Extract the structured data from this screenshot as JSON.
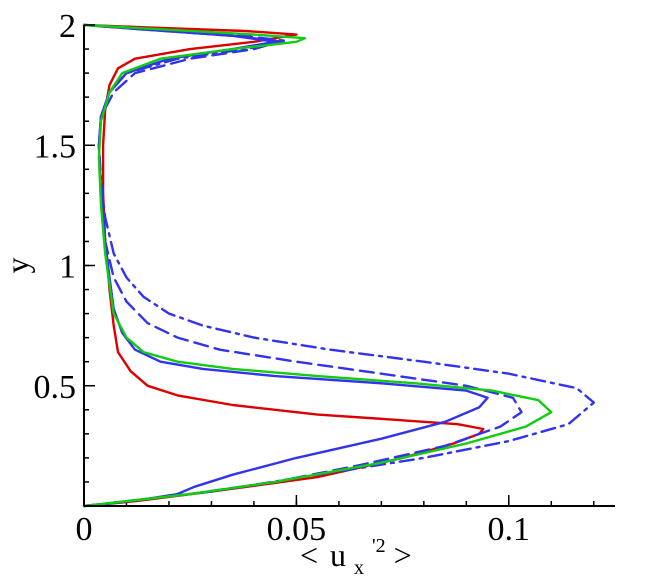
{
  "chart_data": {
    "type": "line",
    "title": "",
    "xlabel": "< u_x'^2 >",
    "xlabel_parts": {
      "open": "<",
      "base": "u",
      "sub": "x",
      "sup": "'2",
      "close": ">"
    },
    "ylabel": "y",
    "xlim": [
      0,
      0.125
    ],
    "ylim": [
      0,
      2
    ],
    "xticks": [
      0,
      0.05,
      0.1
    ],
    "xtick_labels": [
      "0",
      "0.05",
      "0.1"
    ],
    "yticks": [
      0.5,
      1,
      1.5,
      2
    ],
    "ytick_labels": [
      "0.5",
      "1",
      "1.5",
      "2"
    ],
    "x_minor_step": 0.01,
    "y_minor_step": 0.1,
    "legend": null,
    "series": [
      {
        "color": "#dd0000",
        "dash": "solid",
        "points": [
          [
            0.0,
            0.0
          ],
          [
            0.012,
            0.02
          ],
          [
            0.03,
            0.06
          ],
          [
            0.055,
            0.12
          ],
          [
            0.075,
            0.2
          ],
          [
            0.087,
            0.26
          ],
          [
            0.093,
            0.3
          ],
          [
            0.094,
            0.32
          ],
          [
            0.088,
            0.34
          ],
          [
            0.072,
            0.36
          ],
          [
            0.055,
            0.38
          ],
          [
            0.035,
            0.42
          ],
          [
            0.022,
            0.46
          ],
          [
            0.015,
            0.5
          ],
          [
            0.011,
            0.56
          ],
          [
            0.008,
            0.64
          ],
          [
            0.007,
            0.75
          ],
          [
            0.006,
            0.9
          ],
          [
            0.005,
            1.1
          ],
          [
            0.0045,
            1.3
          ],
          [
            0.0045,
            1.5
          ],
          [
            0.005,
            1.65
          ],
          [
            0.006,
            1.75
          ],
          [
            0.008,
            1.82
          ],
          [
            0.012,
            1.86
          ],
          [
            0.025,
            1.9
          ],
          [
            0.04,
            1.93
          ],
          [
            0.05,
            1.96
          ],
          [
            0.038,
            1.975
          ],
          [
            0.015,
            1.99
          ],
          [
            0.0,
            2.0
          ]
        ]
      },
      {
        "color": "#3333ee",
        "dash": "solid",
        "points": [
          [
            0.0,
            0.0
          ],
          [
            0.006,
            0.01
          ],
          [
            0.015,
            0.03
          ],
          [
            0.022,
            0.05
          ],
          [
            0.026,
            0.08
          ],
          [
            0.035,
            0.13
          ],
          [
            0.05,
            0.2
          ],
          [
            0.07,
            0.28
          ],
          [
            0.085,
            0.35
          ],
          [
            0.093,
            0.41
          ],
          [
            0.095,
            0.45
          ],
          [
            0.09,
            0.48
          ],
          [
            0.07,
            0.51
          ],
          [
            0.045,
            0.54
          ],
          [
            0.028,
            0.57
          ],
          [
            0.018,
            0.6
          ],
          [
            0.012,
            0.65
          ],
          [
            0.009,
            0.72
          ],
          [
            0.007,
            0.82
          ],
          [
            0.006,
            0.95
          ],
          [
            0.005,
            1.1
          ],
          [
            0.004,
            1.3
          ],
          [
            0.0035,
            1.5
          ],
          [
            0.004,
            1.62
          ],
          [
            0.006,
            1.72
          ],
          [
            0.01,
            1.8
          ],
          [
            0.02,
            1.86
          ],
          [
            0.035,
            1.9
          ],
          [
            0.045,
            1.93
          ],
          [
            0.035,
            1.955
          ],
          [
            0.015,
            1.98
          ],
          [
            0.0,
            2.0
          ]
        ]
      },
      {
        "color": "#3333ee",
        "dash": "dashed",
        "points": [
          [
            0.0,
            0.0
          ],
          [
            0.01,
            0.02
          ],
          [
            0.025,
            0.05
          ],
          [
            0.045,
            0.1
          ],
          [
            0.065,
            0.17
          ],
          [
            0.085,
            0.25
          ],
          [
            0.098,
            0.33
          ],
          [
            0.103,
            0.39
          ],
          [
            0.101,
            0.45
          ],
          [
            0.09,
            0.5
          ],
          [
            0.07,
            0.55
          ],
          [
            0.05,
            0.6
          ],
          [
            0.032,
            0.65
          ],
          [
            0.022,
            0.7
          ],
          [
            0.015,
            0.76
          ],
          [
            0.01,
            0.85
          ],
          [
            0.007,
            0.95
          ],
          [
            0.005,
            1.1
          ],
          [
            0.004,
            1.3
          ],
          [
            0.0035,
            1.5
          ],
          [
            0.004,
            1.62
          ],
          [
            0.007,
            1.72
          ],
          [
            0.012,
            1.8
          ],
          [
            0.025,
            1.86
          ],
          [
            0.04,
            1.9
          ],
          [
            0.047,
            1.935
          ],
          [
            0.035,
            1.96
          ],
          [
            0.015,
            1.985
          ],
          [
            0.0,
            2.0
          ]
        ]
      },
      {
        "color": "#3333ee",
        "dash": "dashdot",
        "points": [
          [
            0.0,
            0.0
          ],
          [
            0.01,
            0.02
          ],
          [
            0.03,
            0.06
          ],
          [
            0.055,
            0.13
          ],
          [
            0.08,
            0.2
          ],
          [
            0.1,
            0.27
          ],
          [
            0.114,
            0.34
          ],
          [
            0.12,
            0.43
          ],
          [
            0.116,
            0.49
          ],
          [
            0.1,
            0.55
          ],
          [
            0.08,
            0.6
          ],
          [
            0.058,
            0.65
          ],
          [
            0.04,
            0.7
          ],
          [
            0.028,
            0.75
          ],
          [
            0.02,
            0.8
          ],
          [
            0.014,
            0.87
          ],
          [
            0.01,
            0.95
          ],
          [
            0.007,
            1.05
          ],
          [
            0.005,
            1.2
          ],
          [
            0.004,
            1.35
          ],
          [
            0.0035,
            1.5
          ],
          [
            0.004,
            1.62
          ],
          [
            0.006,
            1.72
          ],
          [
            0.01,
            1.8
          ],
          [
            0.022,
            1.86
          ],
          [
            0.038,
            1.9
          ],
          [
            0.047,
            1.93
          ],
          [
            0.035,
            1.955
          ],
          [
            0.015,
            1.98
          ],
          [
            0.0,
            2.0
          ]
        ]
      },
      {
        "color": "#11cc11",
        "dash": "solid",
        "points": [
          [
            0.0,
            0.0
          ],
          [
            0.01,
            0.02
          ],
          [
            0.025,
            0.05
          ],
          [
            0.045,
            0.1
          ],
          [
            0.07,
            0.18
          ],
          [
            0.09,
            0.26
          ],
          [
            0.104,
            0.33
          ],
          [
            0.11,
            0.39
          ],
          [
            0.107,
            0.44
          ],
          [
            0.096,
            0.48
          ],
          [
            0.078,
            0.51
          ],
          [
            0.055,
            0.54
          ],
          [
            0.035,
            0.57
          ],
          [
            0.022,
            0.6
          ],
          [
            0.014,
            0.64
          ],
          [
            0.01,
            0.7
          ],
          [
            0.007,
            0.8
          ],
          [
            0.006,
            0.92
          ],
          [
            0.005,
            1.05
          ],
          [
            0.004,
            1.25
          ],
          [
            0.0035,
            1.45
          ],
          [
            0.004,
            1.6
          ],
          [
            0.006,
            1.72
          ],
          [
            0.009,
            1.8
          ],
          [
            0.018,
            1.86
          ],
          [
            0.035,
            1.9
          ],
          [
            0.05,
            1.93
          ],
          [
            0.052,
            1.945
          ],
          [
            0.04,
            1.96
          ],
          [
            0.015,
            1.985
          ],
          [
            0.0,
            2.0
          ]
        ]
      }
    ]
  }
}
